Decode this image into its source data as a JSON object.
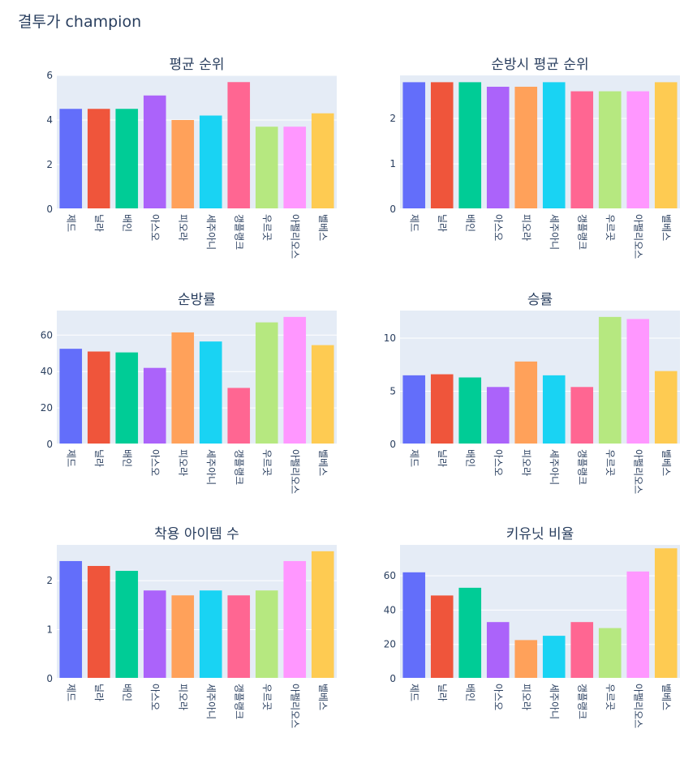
{
  "title": "결투가 champion",
  "colors": [
    "#636efa",
    "#EF553B",
    "#00cc96",
    "#ab63fa",
    "#FFA15A",
    "#19d3f3",
    "#FF6692",
    "#B6E880",
    "#FF97FF",
    "#FECB52"
  ],
  "chart_data": [
    {
      "type": "bar",
      "title": "평균 순위",
      "categories": [
        "제드",
        "닐라",
        "배인",
        "아스오",
        "피오라",
        "세주아니",
        "갱플랭크",
        "우르곳",
        "아펠리오스",
        "벨베스"
      ],
      "values": [
        4.5,
        4.5,
        4.5,
        5.1,
        4.0,
        4.2,
        5.7,
        3.7,
        3.7,
        4.3
      ],
      "ylim": [
        0,
        6
      ],
      "yticks": [
        0,
        2,
        4,
        6
      ],
      "grid": true
    },
    {
      "type": "bar",
      "title": "순방시 평균 순위",
      "categories": [
        "제드",
        "닐라",
        "배인",
        "아스오",
        "피오라",
        "세주아니",
        "갱플랭크",
        "우르곳",
        "아펠리오스",
        "벨베스"
      ],
      "values": [
        2.8,
        2.8,
        2.8,
        2.7,
        2.7,
        2.8,
        2.6,
        2.6,
        2.6,
        2.8
      ],
      "ylim": [
        0,
        2.95
      ],
      "yticks": [
        0,
        1,
        2
      ],
      "grid": true
    },
    {
      "type": "bar",
      "title": "순방률",
      "categories": [
        "제드",
        "닐라",
        "배인",
        "아스오",
        "피오라",
        "세주아니",
        "갱플랭크",
        "우르곳",
        "아펠리오스",
        "벨베스"
      ],
      "values": [
        52.5,
        51,
        50.5,
        42,
        61.5,
        56.5,
        31,
        67,
        70,
        54.5
      ],
      "ylim": [
        0,
        73.5
      ],
      "yticks": [
        0,
        20,
        40,
        60
      ],
      "grid": true
    },
    {
      "type": "bar",
      "title": "승률",
      "categories": [
        "제드",
        "닐라",
        "배인",
        "아스오",
        "피오라",
        "세주아니",
        "갱플랭크",
        "우르곳",
        "아펠리오스",
        "벨베스"
      ],
      "values": [
        6.5,
        6.6,
        6.3,
        5.4,
        7.8,
        6.5,
        5.4,
        12,
        11.8,
        6.9
      ],
      "ylim": [
        0,
        12.6
      ],
      "yticks": [
        0,
        5,
        10
      ],
      "grid": true
    },
    {
      "type": "bar",
      "title": "착용 아이템 수",
      "categories": [
        "제드",
        "닐라",
        "배인",
        "아스오",
        "피오라",
        "세주아니",
        "갱플랭크",
        "우르곳",
        "아펠리오스",
        "벨베스"
      ],
      "values": [
        2.4,
        2.3,
        2.2,
        1.8,
        1.7,
        1.8,
        1.7,
        1.8,
        2.4,
        2.6
      ],
      "ylim": [
        0,
        2.73
      ],
      "yticks": [
        0,
        1,
        2
      ],
      "grid": true
    },
    {
      "type": "bar",
      "title": "키유닛 비율",
      "categories": [
        "제드",
        "닐라",
        "배인",
        "아스오",
        "피오라",
        "세주아니",
        "갱플랭크",
        "우르곳",
        "아펠리오스",
        "벨베스"
      ],
      "values": [
        62,
        48.5,
        53,
        33,
        22.5,
        25,
        33,
        29.5,
        62.5,
        76
      ],
      "ylim": [
        0,
        78
      ],
      "yticks": [
        0,
        20,
        40,
        60
      ],
      "grid": true
    }
  ]
}
